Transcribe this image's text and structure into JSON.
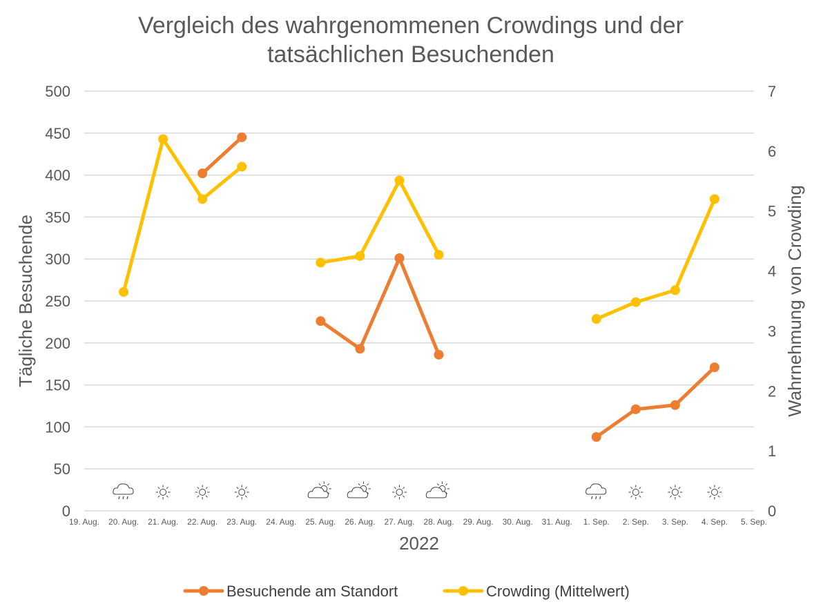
{
  "chart_data": {
    "type": "line",
    "title_line1": "Vergleich des wahrgenommenen Crowdings und der",
    "title_line2": "tatsächlichen Besuchenden",
    "xlabel": "2022",
    "ylabel_left": "Tägliche Besuchende",
    "ylabel_right": "Wahrnehmung von Crowding",
    "ylim_left": [
      0,
      500
    ],
    "ylim_right": [
      0,
      7
    ],
    "yticks_left": [
      "0",
      "50",
      "100",
      "150",
      "200",
      "250",
      "300",
      "350",
      "400",
      "450",
      "500"
    ],
    "yticks_right": [
      "0",
      "1",
      "2",
      "3",
      "4",
      "5",
      "6",
      "7"
    ],
    "grid": true,
    "legend_position": "bottom",
    "categories": [
      "19. Aug.",
      "20. Aug.",
      "21. Aug.",
      "22. Aug.",
      "23. Aug.",
      "24. Aug.",
      "25. Aug.",
      "26. Aug.",
      "27. Aug.",
      "28. Aug.",
      "29. Aug.",
      "30. Aug.",
      "31. Aug.",
      "1. Sep.",
      "2. Sep.",
      "3. Sep.",
      "4. Sep.",
      "5. Sep."
    ],
    "series": [
      {
        "name": "Besuchende am Standort",
        "axis": "left",
        "color": "#ED7D31",
        "values": [
          null,
          null,
          null,
          402,
          445,
          null,
          226,
          193,
          301,
          186,
          null,
          null,
          null,
          88,
          121,
          126,
          171,
          null
        ]
      },
      {
        "name": "Crowding (Mittelwert)",
        "axis": "right",
        "color": "#FFC000",
        "values": [
          null,
          3.65,
          6.2,
          5.2,
          5.74,
          null,
          4.14,
          4.25,
          5.51,
          4.27,
          null,
          null,
          null,
          3.2,
          3.48,
          3.68,
          5.2,
          null
        ]
      }
    ],
    "weather_icons": [
      null,
      "rain-cloud-icon",
      "sun-icon",
      "sun-icon",
      "sun-icon",
      null,
      "sun-behind-cloud-icon",
      "sun-behind-cloud-icon",
      "sun-icon",
      "sun-behind-cloud-icon",
      null,
      null,
      null,
      "rain-cloud-icon",
      "sun-icon",
      "sun-icon",
      "sun-icon",
      null
    ]
  },
  "colors": {
    "grid": "#D9D9D9",
    "text": "#595959",
    "icon": "#404040"
  }
}
